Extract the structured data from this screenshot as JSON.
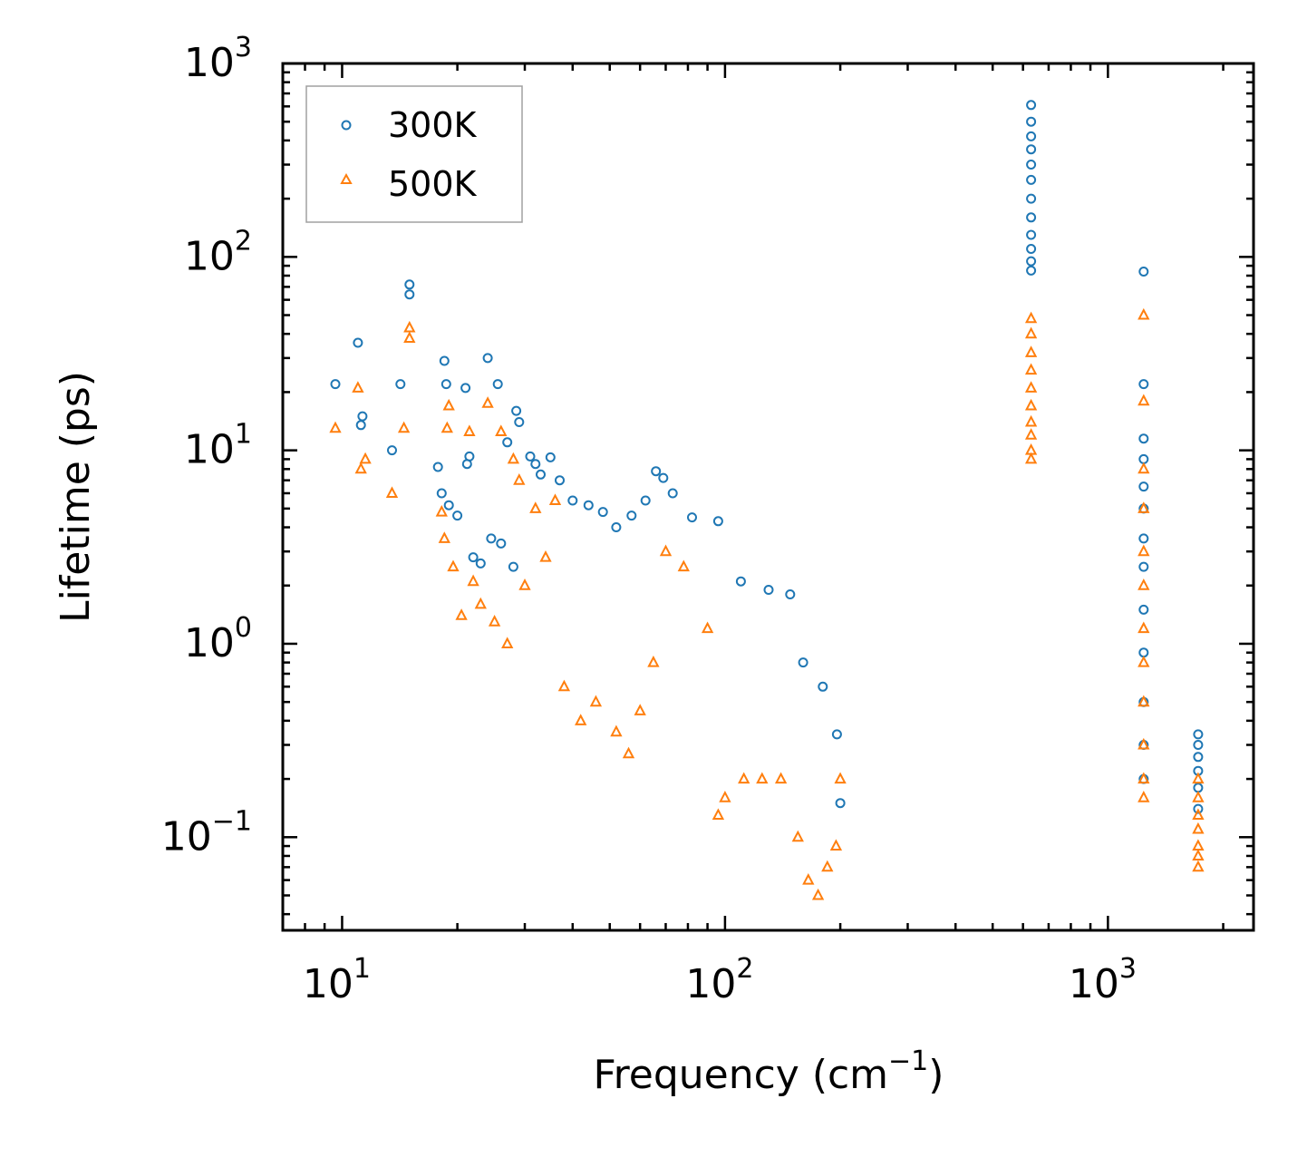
{
  "chart_data": {
    "type": "scatter",
    "xlabel_main": "Frequency (cm",
    "xlabel_sup": "−1",
    "xlabel_close": ")",
    "ylabel": "Lifetime (ps)",
    "xscale": "log",
    "yscale": "log",
    "xlim": [
      7,
      2400
    ],
    "ylim": [
      0.033,
      1000
    ],
    "x_ticks": [
      {
        "base": "10",
        "exp": "1",
        "value": 10
      },
      {
        "base": "10",
        "exp": "2",
        "value": 100
      },
      {
        "base": "10",
        "exp": "3",
        "value": 1000
      }
    ],
    "y_ticks": [
      {
        "base": "10",
        "exp": "−1",
        "value": 0.1
      },
      {
        "base": "10",
        "exp": "0",
        "value": 1
      },
      {
        "base": "10",
        "exp": "1",
        "value": 10
      },
      {
        "base": "10",
        "exp": "2",
        "value": 100
      },
      {
        "base": "10",
        "exp": "3",
        "value": 1000
      }
    ],
    "legend_position": "top-left",
    "series": [
      {
        "name": "300K",
        "marker": "circle",
        "color": "#1f77b4",
        "points": [
          [
            9.6,
            22
          ],
          [
            11,
            36
          ],
          [
            11.2,
            13.5
          ],
          [
            11.3,
            15
          ],
          [
            13.5,
            10
          ],
          [
            14.2,
            22
          ],
          [
            15,
            72
          ],
          [
            15,
            64
          ],
          [
            17.8,
            8.2
          ],
          [
            18.2,
            6
          ],
          [
            18.5,
            29
          ],
          [
            18.7,
            22
          ],
          [
            19,
            5.2
          ],
          [
            20,
            4.6
          ],
          [
            21,
            21
          ],
          [
            21.2,
            8.5
          ],
          [
            21.5,
            9.3
          ],
          [
            22,
            2.8
          ],
          [
            23,
            2.6
          ],
          [
            24,
            30
          ],
          [
            24.5,
            3.5
          ],
          [
            25.5,
            22
          ],
          [
            26,
            3.3
          ],
          [
            27,
            11
          ],
          [
            28,
            2.5
          ],
          [
            28.5,
            16
          ],
          [
            29,
            14
          ],
          [
            31,
            9.3
          ],
          [
            32,
            8.5
          ],
          [
            33,
            7.5
          ],
          [
            35,
            9.2
          ],
          [
            37,
            7
          ],
          [
            40,
            5.5
          ],
          [
            44,
            5.2
          ],
          [
            48,
            4.8
          ],
          [
            52,
            4
          ],
          [
            57,
            4.6
          ],
          [
            62,
            5.5
          ],
          [
            66,
            7.8
          ],
          [
            69,
            7.2
          ],
          [
            73,
            6
          ],
          [
            82,
            4.5
          ],
          [
            96,
            4.3
          ],
          [
            110,
            2.1
          ],
          [
            130,
            1.9
          ],
          [
            148,
            1.8
          ],
          [
            160,
            0.8
          ],
          [
            180,
            0.6
          ],
          [
            196,
            0.34
          ],
          [
            200,
            0.15
          ],
          [
            630,
            610
          ],
          [
            630,
            500
          ],
          [
            630,
            420
          ],
          [
            630,
            360
          ],
          [
            630,
            300
          ],
          [
            630,
            250
          ],
          [
            630,
            200
          ],
          [
            630,
            160
          ],
          [
            630,
            130
          ],
          [
            630,
            110
          ],
          [
            630,
            95
          ],
          [
            630,
            85
          ],
          [
            1240,
            84
          ],
          [
            1240,
            22
          ],
          [
            1240,
            11.5
          ],
          [
            1240,
            9
          ],
          [
            1240,
            6.5
          ],
          [
            1240,
            5
          ],
          [
            1240,
            3.5
          ],
          [
            1240,
            2.5
          ],
          [
            1240,
            1.5
          ],
          [
            1240,
            0.9
          ],
          [
            1240,
            0.5
          ],
          [
            1240,
            0.3
          ],
          [
            1240,
            0.2
          ],
          [
            1720,
            0.34
          ],
          [
            1720,
            0.3
          ],
          [
            1720,
            0.26
          ],
          [
            1720,
            0.22
          ],
          [
            1720,
            0.18
          ],
          [
            1720,
            0.14
          ]
        ]
      },
      {
        "name": "500K",
        "marker": "triangle",
        "color": "#ff7f0e",
        "points": [
          [
            9.6,
            13
          ],
          [
            11,
            21
          ],
          [
            11.2,
            8
          ],
          [
            11.5,
            9
          ],
          [
            13.5,
            6
          ],
          [
            14.5,
            13
          ],
          [
            15,
            43
          ],
          [
            15,
            38
          ],
          [
            18.2,
            4.8
          ],
          [
            18.5,
            3.5
          ],
          [
            18.8,
            13
          ],
          [
            19,
            17
          ],
          [
            19.5,
            2.5
          ],
          [
            20.5,
            1.4
          ],
          [
            21.5,
            12.5
          ],
          [
            22,
            2.1
          ],
          [
            23,
            1.6
          ],
          [
            24,
            17.5
          ],
          [
            25,
            1.3
          ],
          [
            26,
            12.5
          ],
          [
            27,
            1
          ],
          [
            28,
            9
          ],
          [
            29,
            7
          ],
          [
            30,
            2
          ],
          [
            32,
            5
          ],
          [
            34,
            2.8
          ],
          [
            36,
            5.5
          ],
          [
            38,
            0.6
          ],
          [
            42,
            0.4
          ],
          [
            46,
            0.5
          ],
          [
            52,
            0.35
          ],
          [
            56,
            0.27
          ],
          [
            60,
            0.45
          ],
          [
            65,
            0.8
          ],
          [
            70,
            3
          ],
          [
            78,
            2.5
          ],
          [
            90,
            1.2
          ],
          [
            96,
            0.13
          ],
          [
            100,
            0.16
          ],
          [
            112,
            0.2
          ],
          [
            125,
            0.2
          ],
          [
            140,
            0.2
          ],
          [
            155,
            0.1
          ],
          [
            165,
            0.06
          ],
          [
            175,
            0.05
          ],
          [
            185,
            0.07
          ],
          [
            195,
            0.09
          ],
          [
            200,
            0.2
          ],
          [
            630,
            48
          ],
          [
            630,
            40
          ],
          [
            630,
            32
          ],
          [
            630,
            26
          ],
          [
            630,
            21
          ],
          [
            630,
            17
          ],
          [
            630,
            14
          ],
          [
            630,
            12
          ],
          [
            630,
            10
          ],
          [
            630,
            9
          ],
          [
            1240,
            50
          ],
          [
            1240,
            18
          ],
          [
            1240,
            8
          ],
          [
            1240,
            5
          ],
          [
            1240,
            3
          ],
          [
            1240,
            2
          ],
          [
            1240,
            1.2
          ],
          [
            1240,
            0.8
          ],
          [
            1240,
            0.5
          ],
          [
            1240,
            0.3
          ],
          [
            1240,
            0.2
          ],
          [
            1240,
            0.16
          ],
          [
            1720,
            0.2
          ],
          [
            1720,
            0.16
          ],
          [
            1720,
            0.13
          ],
          [
            1720,
            0.11
          ],
          [
            1720,
            0.09
          ],
          [
            1720,
            0.08
          ],
          [
            1720,
            0.07
          ]
        ]
      }
    ]
  }
}
